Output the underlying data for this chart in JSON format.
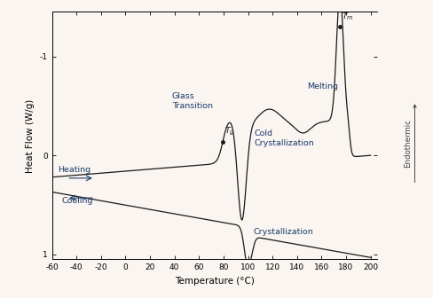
{
  "xlim": [
    -60,
    205
  ],
  "ylim_bottom": 1.05,
  "ylim_top": -1.45,
  "xlabel": "Temperature (°C)",
  "ylabel": "Heat Flow (W/g)",
  "xticks": [
    -60,
    -40,
    -20,
    0,
    20,
    40,
    60,
    80,
    100,
    120,
    140,
    160,
    180,
    200
  ],
  "yticks": [
    -1,
    0,
    1
  ],
  "bg_color": "#faf5f0",
  "line_color": "#1a1a1a",
  "annotation_color": "#1a3a6b",
  "endothermic_label": "Endothermic →"
}
